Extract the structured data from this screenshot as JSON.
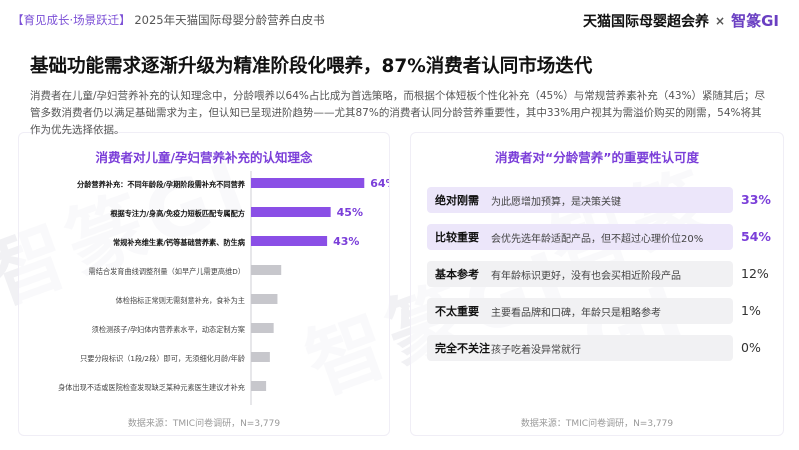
{
  "header": {
    "bracket_open": "【",
    "tag": "育见成长·场景跃迁",
    "bracket_close": "】",
    "doc_title": "2025年天猫国际母婴分龄营养白皮书",
    "logo_tmall": "天猫国际母婴超会养",
    "logo_sep": "×",
    "logo_zg": "智篆GI"
  },
  "page": {
    "title": "基础功能需求逐渐升级为精准阶段化喂养，87%消费者认同市场迭代",
    "lead": "消费者在儿童/孕妇营养补充的认知理念中，分龄喂养以64%占比成为首选策略，而根据个体短板个性化补充（45%）与常规营养素补充（43%）紧随其后；尽管多数消费者仍以满足基础需求为主，但认知已呈现进阶趋势——尤其87%的消费者认同分龄营养重要性，其中33%用户视其为需溢价购买的刚需，54%将其作为优先选择依据。"
  },
  "left_panel": {
    "source": "数据来源：TMIC问卷调研，N=3,779"
  },
  "right_panel": {
    "source": "数据来源：TMIC问卷调研，N=3,779"
  },
  "colors": {
    "accent": "#7b3fd9",
    "bar_strong": "#8a4fe6",
    "bar_light": "#c7c7cc",
    "highlight_bg": "#ece6fa",
    "grey_bg": "#f1f1f3"
  },
  "chart_data": [
    {
      "type": "bar",
      "orientation": "horizontal",
      "title": "消费者对儿童/孕妇营养补充的认知理念",
      "categories": [
        "分龄营养补充：不同年龄段/孕期阶段需补充不同营养",
        "根据专注力/身高/免疫力短板匹配专属配方",
        "常规补充维生素/钙等基础营养素、防生病",
        "需结合发育曲线调整剂量（如早产儿需更高维D）",
        "体检指标正常则无需刻意补充，食补为主",
        "须检测孩子/孕妇体内营养素水平，动态定制方案",
        "只要分段标识（1段/2段）即可，无须细化月龄/年龄",
        "身体出现不适或医院检查发现缺乏某种元素医生建议才补充"
      ],
      "values": [
        64,
        45,
        43,
        8,
        7,
        6,
        5,
        4
      ],
      "data_labels": [
        "64%",
        "45%",
        "43%",
        "",
        "",
        "",
        "",
        ""
      ],
      "highlighted": [
        true,
        true,
        true,
        false,
        false,
        false,
        false,
        false
      ]
    },
    {
      "type": "table",
      "title": "消费者对“分龄营养”的重要性认可度",
      "rows": [
        {
          "label": "绝对刚需",
          "desc": "为此愿增加预算，是决策关键",
          "value": 33,
          "text": "33%",
          "highlighted": true
        },
        {
          "label": "比较重要",
          "desc": "会优先选年龄适配产品，但不超过心理价位20%",
          "value": 54,
          "text": "54%",
          "highlighted": true
        },
        {
          "label": "基本参考",
          "desc": "有年龄标识更好，没有也会买相近阶段产品",
          "value": 12,
          "text": "12%",
          "highlighted": false
        },
        {
          "label": "不太重要",
          "desc": "主要看品牌和口碑，年龄只是粗略参考",
          "value": 1,
          "text": "1%",
          "highlighted": false
        },
        {
          "label": "完全不关注",
          "desc": "孩子吃着没异常就行",
          "value": 0,
          "text": "0%",
          "highlighted": false
        }
      ]
    }
  ]
}
